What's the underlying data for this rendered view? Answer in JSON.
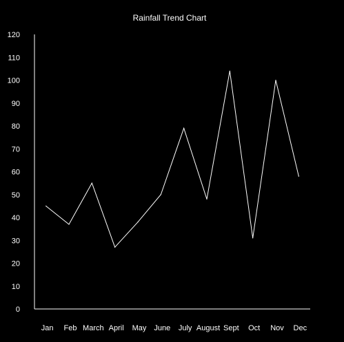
{
  "colors": {
    "background": "#000000",
    "foreground": "#ffffff",
    "line": "#ffffff"
  },
  "chart_data": {
    "type": "line",
    "title": "Rainfall Trend Chart",
    "xlabel": "",
    "ylabel": "",
    "categories": [
      "Jan",
      "Feb",
      "March",
      "April",
      "May",
      "June",
      "July",
      "August",
      "Sept",
      "Oct",
      "Nov",
      "Dec"
    ],
    "series": [
      {
        "values": [
          45,
          37,
          55,
          27,
          38,
          50,
          79,
          48,
          104,
          31,
          100,
          58
        ]
      }
    ],
    "ylim": [
      0,
      120
    ],
    "yticks": [
      0,
      10,
      20,
      30,
      40,
      50,
      60,
      70,
      80,
      90,
      100,
      110,
      120
    ],
    "grid": false,
    "legend": "none"
  }
}
